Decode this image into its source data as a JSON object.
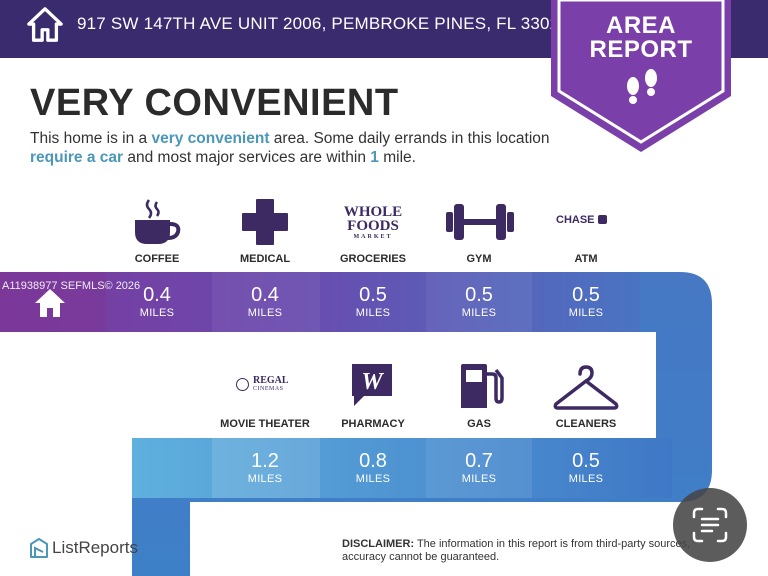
{
  "header": {
    "address": "917 SW 147TH AVE UNIT 2006, PEMBROKE PINES, FL 33027"
  },
  "badge": {
    "line1": "AREA",
    "line2": "REPORT"
  },
  "headline": "VERY CONVENIENT",
  "description": {
    "p1": "This home is in a ",
    "h1": "very convenient",
    "p2": " area. Some daily errands in this location ",
    "h2": "require a car",
    "p3": " and most major services are within ",
    "h3": "1",
    "p4": " mile."
  },
  "watermark": "A11938977 SEFMLS© 2026",
  "row1": [
    {
      "label": "COFFEE",
      "value": "0.4",
      "unit": "MILES",
      "icon": "coffee-icon"
    },
    {
      "label": "MEDICAL",
      "value": "0.4",
      "unit": "MILES",
      "icon": "medical-cross-icon"
    },
    {
      "label": "GROCERIES",
      "value": "0.5",
      "unit": "MILES",
      "icon": "whole-foods-logo",
      "logo": [
        "WHOLE",
        "FOODS",
        "MARKET"
      ]
    },
    {
      "label": "GYM",
      "value": "0.5",
      "unit": "MILES",
      "icon": "dumbbell-icon"
    },
    {
      "label": "ATM",
      "value": "0.5",
      "unit": "MILES",
      "icon": "chase-logo",
      "logo": [
        "CHASE"
      ]
    }
  ],
  "row2": [
    {
      "label": "MOVIE THEATER",
      "value": "1.2",
      "unit": "MILES",
      "icon": "regal-logo",
      "logo": [
        "REGAL",
        "CINEMAS"
      ]
    },
    {
      "label": "PHARMACY",
      "value": "0.8",
      "unit": "MILES",
      "icon": "walgreens-logo"
    },
    {
      "label": "GAS",
      "value": "0.7",
      "unit": "MILES",
      "icon": "gas-pump-icon"
    },
    {
      "label": "CLEANERS",
      "value": "0.5",
      "unit": "MILES",
      "icon": "hanger-icon"
    }
  ],
  "footer": {
    "brand": "ListReports",
    "disclaimer_label": "DISCLAIMER:",
    "disclaimer_text": " The information in this report is from third-party sources, accuracy cannot be guaranteed."
  },
  "colors": {
    "header": "#3a2a6e",
    "badge": "#7a3fa8",
    "accent": "#4a97b8",
    "icon": "#3d2a63"
  }
}
